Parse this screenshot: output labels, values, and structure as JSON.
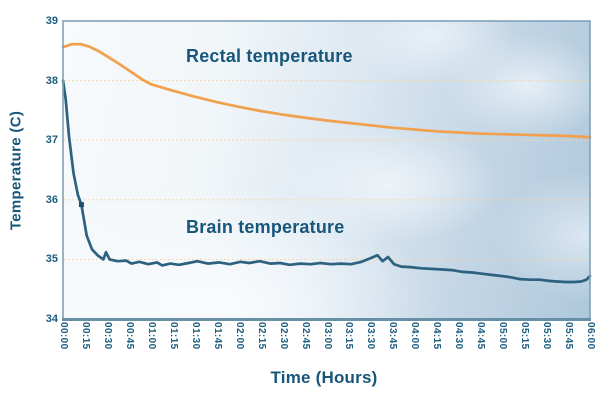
{
  "axes": {
    "y_label": "Temperature (C)",
    "x_label": "Time (Hours)"
  },
  "annotations": {
    "rectal": "Rectal temperature",
    "brain": "Brain temperature"
  },
  "colors": {
    "rectal_line": "#f1a04d",
    "brain_line": "#2c6180",
    "label_text": "#17567a",
    "tick_text": "#1d5c7e",
    "gridline": "#f0d6ac",
    "axis_border": "#7fa2b8",
    "axis_bottom": "#678fa6",
    "plot_background_light": "#f8fafc",
    "plot_background_dark": "#aec8db"
  },
  "chart_data": {
    "type": "line",
    "title": "",
    "xlabel": "Time (Hours)",
    "ylabel": "Temperature (C)",
    "x_unit": "hours",
    "x_range": [
      0,
      6
    ],
    "ylim": [
      34,
      39
    ],
    "y_ticks": [
      39,
      38,
      37,
      36,
      35,
      34
    ],
    "x_tick_labels": [
      "00:00",
      "00:15",
      "00:30",
      "00:45",
      "01:00",
      "01:15",
      "01:30",
      "01:45",
      "02:00",
      "02:15",
      "02:30",
      "02:45",
      "03:00",
      "03:15",
      "03:30",
      "03:45",
      "04:00",
      "04:15",
      "04:30",
      "04:45",
      "05:00",
      "05:15",
      "05:30",
      "05:45",
      "06:00"
    ],
    "gridlines_at": [
      38,
      37,
      36,
      35
    ],
    "grid": "horizontal-dotted",
    "legend": "inline-annotations",
    "series": [
      {
        "name": "Rectal temperature",
        "color": "#f1a04d",
        "points": [
          [
            0,
            38.56
          ],
          [
            0.1,
            38.61
          ],
          [
            0.2,
            38.61
          ],
          [
            0.3,
            38.57
          ],
          [
            0.4,
            38.5
          ],
          [
            0.5,
            38.41
          ],
          [
            0.65,
            38.27
          ],
          [
            0.8,
            38.12
          ],
          [
            0.9,
            38.02
          ],
          [
            1,
            37.94
          ],
          [
            1.25,
            37.83
          ],
          [
            1.5,
            37.73
          ],
          [
            1.75,
            37.64
          ],
          [
            2,
            37.56
          ],
          [
            2.25,
            37.49
          ],
          [
            2.5,
            37.43
          ],
          [
            2.75,
            37.38
          ],
          [
            3,
            37.33
          ],
          [
            3.25,
            37.29
          ],
          [
            3.5,
            37.25
          ],
          [
            3.75,
            37.21
          ],
          [
            4,
            37.18
          ],
          [
            4.25,
            37.15
          ],
          [
            4.5,
            37.13
          ],
          [
            4.75,
            37.11
          ],
          [
            5,
            37.1
          ],
          [
            5.25,
            37.09
          ],
          [
            5.5,
            37.08
          ],
          [
            5.75,
            37.07
          ],
          [
            6,
            37.05
          ]
        ]
      },
      {
        "name": "Brain temperature",
        "color": "#2c6180",
        "points": [
          [
            0,
            38
          ],
          [
            0.03,
            37.7
          ],
          [
            0.07,
            37.05
          ],
          [
            0.12,
            36.45
          ],
          [
            0.17,
            36.08
          ],
          [
            0.21,
            35.92
          ],
          [
            0.27,
            35.4
          ],
          [
            0.33,
            35.17
          ],
          [
            0.4,
            35.06
          ],
          [
            0.46,
            35
          ],
          [
            0.49,
            35.12
          ],
          [
            0.53,
            35
          ],
          [
            0.62,
            34.97
          ],
          [
            0.72,
            34.98
          ],
          [
            0.78,
            34.93
          ],
          [
            0.87,
            34.96
          ],
          [
            0.97,
            34.92
          ],
          [
            1.07,
            34.95
          ],
          [
            1.13,
            34.9
          ],
          [
            1.22,
            34.93
          ],
          [
            1.32,
            34.91
          ],
          [
            1.43,
            34.94
          ],
          [
            1.53,
            34.97
          ],
          [
            1.65,
            34.93
          ],
          [
            1.78,
            34.95
          ],
          [
            1.9,
            34.92
          ],
          [
            2.02,
            34.96
          ],
          [
            2.12,
            34.94
          ],
          [
            2.24,
            34.97
          ],
          [
            2.36,
            34.93
          ],
          [
            2.47,
            34.94
          ],
          [
            2.58,
            34.91
          ],
          [
            2.7,
            34.93
          ],
          [
            2.82,
            34.92
          ],
          [
            2.93,
            34.94
          ],
          [
            3.05,
            34.92
          ],
          [
            3.16,
            34.93
          ],
          [
            3.28,
            34.92
          ],
          [
            3.4,
            34.96
          ],
          [
            3.5,
            35.02
          ],
          [
            3.58,
            35.07
          ],
          [
            3.64,
            34.97
          ],
          [
            3.7,
            35.04
          ],
          [
            3.77,
            34.92
          ],
          [
            3.85,
            34.88
          ],
          [
            3.96,
            34.87
          ],
          [
            4.08,
            34.85
          ],
          [
            4.2,
            34.84
          ],
          [
            4.32,
            34.83
          ],
          [
            4.43,
            34.82
          ],
          [
            4.55,
            34.79
          ],
          [
            4.66,
            34.78
          ],
          [
            4.77,
            34.76
          ],
          [
            4.88,
            34.74
          ],
          [
            5,
            34.72
          ],
          [
            5.1,
            34.7
          ],
          [
            5.2,
            34.67
          ],
          [
            5.32,
            34.66
          ],
          [
            5.43,
            34.66
          ],
          [
            5.53,
            34.64
          ],
          [
            5.62,
            34.63
          ],
          [
            5.72,
            34.62
          ],
          [
            5.82,
            34.62
          ],
          [
            5.9,
            34.63
          ],
          [
            5.96,
            34.66
          ],
          [
            6,
            34.72
          ]
        ],
        "markers": [
          [
            0.21,
            35.92
          ]
        ]
      }
    ]
  }
}
